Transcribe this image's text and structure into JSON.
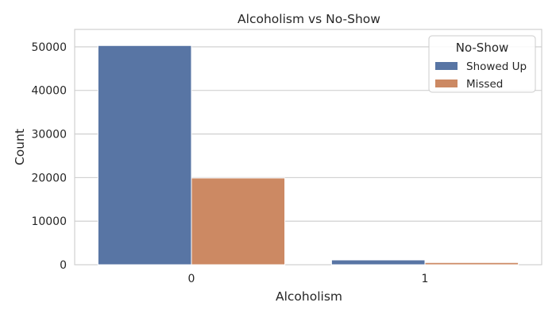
{
  "chart_data": {
    "type": "bar",
    "title": "Alcoholism vs No-Show",
    "xlabel": "Alcoholism",
    "ylabel": "Count",
    "categories": [
      "0",
      "1"
    ],
    "series": [
      {
        "name": "Showed Up",
        "values": [
          50300,
          1100
        ],
        "color": "#5875a4"
      },
      {
        "name": "Missed",
        "values": [
          19900,
          500
        ],
        "color": "#cc8963"
      }
    ],
    "ylim": [
      0,
      54000
    ],
    "yticks": [
      0,
      10000,
      20000,
      30000,
      40000,
      50000
    ],
    "grid": true,
    "legend": {
      "title": "No-Show",
      "position": "top-right"
    }
  }
}
